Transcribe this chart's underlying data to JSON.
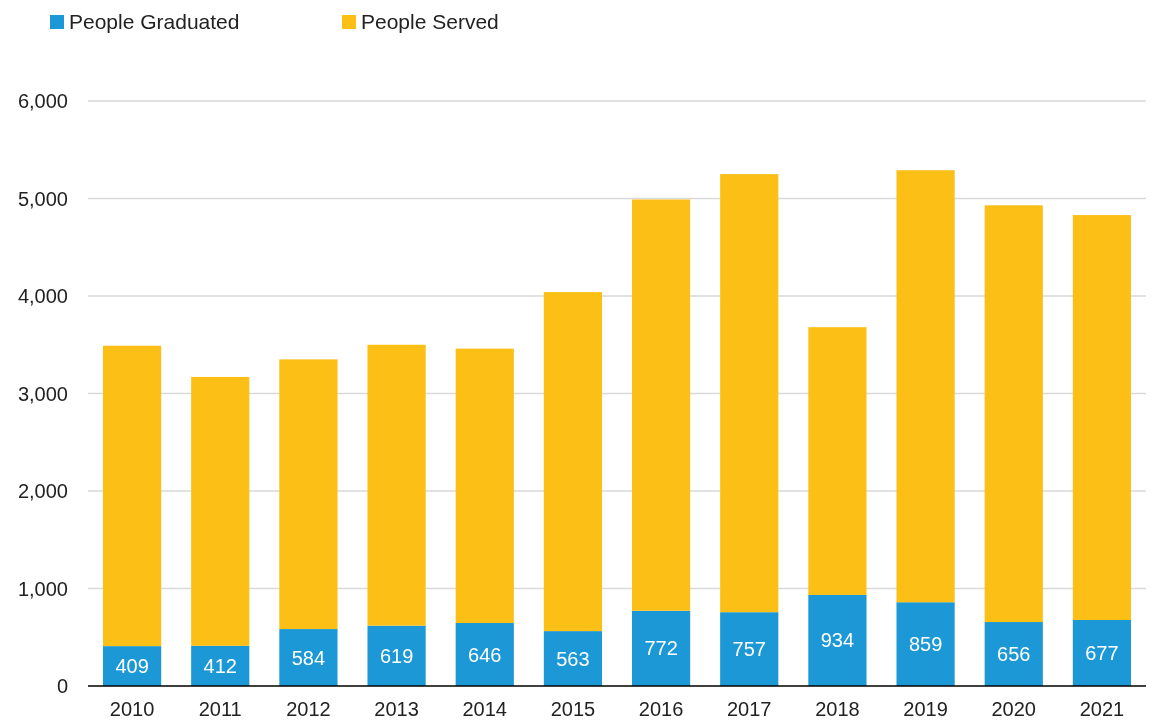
{
  "chart_data": {
    "type": "bar",
    "stacked": true,
    "categories": [
      "2010",
      "2011",
      "2012",
      "2013",
      "2014",
      "2015",
      "2016",
      "2017",
      "2018",
      "2019",
      "2020",
      "2021"
    ],
    "series": [
      {
        "name": "People Graduated",
        "color": "#1b98d5",
        "values": [
          409,
          412,
          584,
          619,
          646,
          563,
          772,
          757,
          934,
          859,
          656,
          677
        ],
        "value_labels": [
          "409",
          "412",
          "584",
          "619",
          "646",
          "563",
          "772",
          "757",
          "934",
          "859",
          "656",
          "677"
        ]
      },
      {
        "name": "People Served",
        "color": "#fbbf16",
        "values": [
          3081,
          2758,
          2766,
          2881,
          2814,
          3477,
          4218,
          4493,
          2746,
          4431,
          4274,
          4153
        ]
      }
    ],
    "ylim": [
      0,
      6000
    ],
    "yticks": [
      {
        "value": 0,
        "label": "0"
      },
      {
        "value": 1000,
        "label": "1,000"
      },
      {
        "value": 2000,
        "label": "2,000"
      },
      {
        "value": 3000,
        "label": "3,000"
      },
      {
        "value": 4000,
        "label": "4,000"
      },
      {
        "value": 5000,
        "label": "5,000"
      },
      {
        "value": 6000,
        "label": "6,000"
      }
    ],
    "grid": "y",
    "legend": "top left"
  }
}
